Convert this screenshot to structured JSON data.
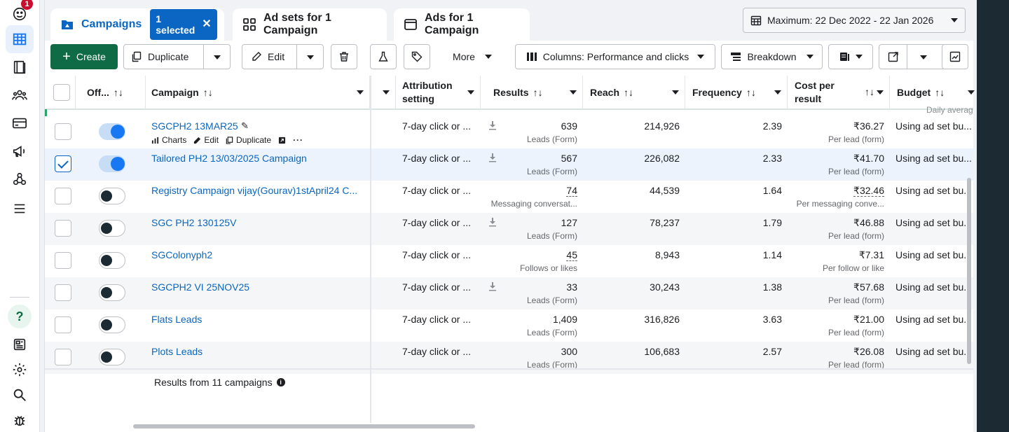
{
  "rail": {
    "notification_count": "1"
  },
  "tabs": {
    "campaigns": "Campaigns",
    "selected_chip": "1 selected",
    "adsets": "Ad sets for 1 Campaign",
    "ads": "Ads for 1 Campaign"
  },
  "date_range": "Maximum: 22 Dec 2022 - 22 Jan 2026",
  "toolbar": {
    "create": "Create",
    "duplicate": "Duplicate",
    "edit": "Edit",
    "more": "More",
    "columns": "Columns: Performance and clicks",
    "breakdown": "Breakdown"
  },
  "headers": {
    "off": "Off...",
    "campaign": "Campaign",
    "attribution_1": "Attribution",
    "attribution_2": "setting",
    "results": "Results",
    "reach": "Reach",
    "frequency": "Frequency",
    "cost_1": "Cost per",
    "cost_2": "result",
    "budget": "Budget",
    "budget_sub": "Daily averag"
  },
  "row_actions": {
    "charts": "Charts",
    "edit": "Edit",
    "duplicate": "Duplicate"
  },
  "rows": [
    {
      "name": "SGCPH2 13MAR25",
      "attribution": "7-day click or ...",
      "results": "639",
      "results_sub": "Leads (Form)",
      "reach": "214,926",
      "frequency": "2.39",
      "cost": "₹36.27",
      "cost_sub": "Per lead (form)",
      "budget": "Using ad set bu...",
      "checked": false,
      "on": true
    },
    {
      "name": "Tailored PH2 13/03/2025 Campaign",
      "attribution": "7-day click or ...",
      "results": "567",
      "results_sub": "Leads (Form)",
      "reach": "226,082",
      "frequency": "2.33",
      "cost": "₹41.70",
      "cost_sub": "Per lead (form)",
      "budget": "Using ad set bu...",
      "checked": true,
      "on": true
    },
    {
      "name": "Registry Campaign vijay(Gourav)1stApril24 C...",
      "attribution": "7-day click or ...",
      "results": "74",
      "results_sub": "Messaging conversat...",
      "reach": "44,539",
      "frequency": "1.64",
      "cost": "₹32.46",
      "cost_sub": "Per messaging conve...",
      "budget": "Using ad set bu...",
      "checked": false,
      "on": false
    },
    {
      "name": "SGC PH2 130125V",
      "attribution": "7-day click or ...",
      "results": "127",
      "results_sub": "Leads (Form)",
      "reach": "78,237",
      "frequency": "1.79",
      "cost": "₹46.88",
      "cost_sub": "Per lead (form)",
      "budget": "Using ad set bu...",
      "checked": false,
      "on": false
    },
    {
      "name": "SGColonyph2",
      "attribution": "7-day click or ...",
      "results": "45",
      "results_sub": "Follows or likes",
      "reach": "8,943",
      "frequency": "1.14",
      "cost": "₹7.31",
      "cost_sub": "Per follow or like",
      "budget": "Using ad set bu...",
      "checked": false,
      "on": false
    },
    {
      "name": "SGCPH2 VI 25NOV25",
      "attribution": "7-day click or ...",
      "results": "33",
      "results_sub": "Leads (Form)",
      "reach": "30,243",
      "frequency": "1.38",
      "cost": "₹57.68",
      "cost_sub": "Per lead (form)",
      "budget": "Using ad set bu...",
      "checked": false,
      "on": false
    },
    {
      "name": "Flats Leads",
      "attribution": "7-day click or ...",
      "results": "1,409",
      "results_sub": "Leads (Form)",
      "reach": "316,826",
      "frequency": "3.63",
      "cost": "₹21.00",
      "cost_sub": "Per lead (form)",
      "budget": "Using ad set bu...",
      "checked": false,
      "on": false
    },
    {
      "name": "Plots Leads",
      "attribution": "7-day click or ...",
      "results": "300",
      "results_sub": "Leads (Form)",
      "reach": "106,683",
      "frequency": "2.57",
      "cost": "₹26.08",
      "cost_sub": "Per lead (form)",
      "budget": "Using ad set bu...",
      "checked": false,
      "on": false
    }
  ],
  "summary": "Results from 11 campaigns",
  "colors": {
    "accent": "#0a66c2",
    "create_green": "#0e6b45",
    "toggle_on": "#1877f2"
  }
}
